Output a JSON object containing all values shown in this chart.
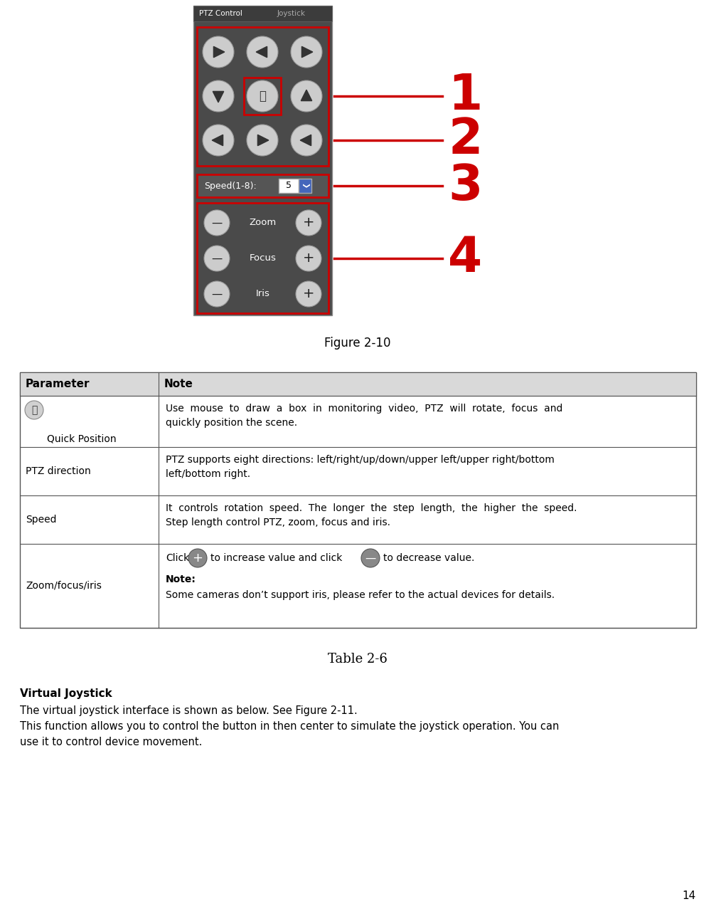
{
  "fig_caption": "Figure 2-10",
  "table_caption": "Table 2-6",
  "page_number": "14",
  "table_header": [
    "Parameter",
    "Note"
  ],
  "bg_color": "#ffffff",
  "table_header_bg": "#d9d9d9",
  "table_border_color": "#555555",
  "panel_bg": "#4a4a4a",
  "panel_tab_bg": "#3c3c3c",
  "btn_color": "#cccccc",
  "btn_edge": "#999999",
  "red_color": "#cc0000",
  "label_numbers": [
    "1",
    "2",
    "3",
    "4"
  ],
  "section_title": "Virtual Joystick",
  "section_body": [
    "The virtual joystick interface is shown as below. See Figure 2-11.",
    "This function allows you to control the button in then center to simulate the joystick operation. You can",
    "use it to control device movement."
  ],
  "zoom_focus_iris_labels": [
    "Zoom",
    "Focus",
    "Iris"
  ],
  "speed_label": "Speed(1-8):",
  "speed_value": "5"
}
